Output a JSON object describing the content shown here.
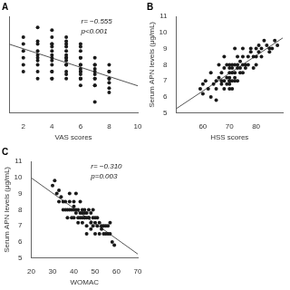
{
  "chart_data": [
    {
      "type": "scatter",
      "title": "A",
      "x_label": "VAS scores",
      "xlim": [
        1,
        10
      ],
      "ylim": [
        4,
        11
      ],
      "xticks": [
        2,
        4,
        6,
        8,
        10
      ],
      "yticks": [],
      "tick_labels": "x",
      "grid": false,
      "annotation": "r= −0.555\np<0.001",
      "series": [
        {
          "type": "scatter",
          "color": "#1a1a1a",
          "x": [
            2,
            2,
            2,
            2,
            2,
            2,
            3,
            3,
            3,
            3,
            3,
            3,
            3,
            3,
            3,
            3,
            4,
            4,
            4,
            4,
            4,
            4,
            4,
            4,
            4,
            4,
            4,
            4,
            4,
            4,
            5,
            5,
            5,
            5,
            5,
            5,
            5,
            5,
            5,
            5,
            5,
            5,
            5,
            5,
            6,
            6,
            6,
            6,
            6,
            6,
            6,
            6,
            6,
            6,
            6,
            6,
            6,
            6,
            6,
            7,
            7,
            7,
            7,
            7,
            7,
            7,
            7,
            7,
            7,
            7,
            8,
            8,
            8,
            8,
            8,
            8,
            8,
            8
          ],
          "values": [
            8.5,
            7.5,
            9.0,
            8.0,
            7.0,
            9.5,
            9.2,
            8.5,
            7.8,
            8.0,
            6.5,
            7.5,
            9.0,
            10.2,
            7.0,
            8.2,
            7.0,
            8.0,
            9.0,
            6.5,
            8.5,
            7.5,
            9.5,
            10.0,
            8.2,
            7.8,
            7.0,
            6.5,
            9.0,
            8.8,
            7.5,
            8.0,
            8.5,
            9.0,
            7.0,
            6.5,
            8.0,
            7.5,
            9.5,
            8.2,
            7.8,
            6.8,
            9.2,
            8.8,
            7.5,
            7.0,
            6.5,
            8.0,
            7.2,
            6.8,
            7.5,
            8.0,
            8.5,
            6.0,
            7.0,
            9.0,
            8.8,
            6.5,
            6.5,
            7.0,
            7.5,
            6.8,
            7.2,
            6.5,
            8.0,
            7.5,
            6.0,
            4.8,
            6.5,
            6.0,
            7.0,
            6.5,
            7.5,
            5.5,
            6.5,
            7.0,
            5.8,
            6.2
          ]
        },
        {
          "type": "line",
          "color": "#555555",
          "x": [
            1,
            10
          ],
          "values": [
            8.9885,
            5.9744
          ]
        }
      ]
    },
    {
      "type": "scatter",
      "title": "B",
      "x_label": "HSS scores",
      "y_label": "Serum APN levels (μg/mL)",
      "xlim": [
        50,
        90
      ],
      "ylim": [
        5,
        11
      ],
      "xticks": [
        60,
        70,
        80
      ],
      "yticks": [
        5,
        6,
        7,
        8,
        9,
        10,
        11
      ],
      "grid": false,
      "series": [
        {
          "type": "scatter",
          "color": "#1a1a1a",
          "x": [
            59,
            60,
            60,
            61,
            62,
            63,
            63,
            64,
            65,
            65,
            65,
            66,
            66,
            67,
            67,
            67,
            68,
            68,
            68,
            68,
            69,
            69,
            69,
            70,
            70,
            70,
            70,
            70,
            70,
            70,
            70,
            71,
            71,
            71,
            71,
            71,
            72,
            72,
            72,
            72,
            72,
            73,
            73,
            73,
            73,
            74,
            74,
            74,
            75,
            75,
            75,
            75,
            76,
            76,
            77,
            77,
            78,
            78,
            79,
            79,
            80,
            80,
            80,
            81,
            81,
            82,
            82,
            83,
            84,
            85,
            85,
            86,
            87,
            88
          ],
          "values": [
            6.5,
            6.8,
            6.2,
            7.0,
            6.5,
            7.5,
            6.0,
            6.8,
            5.8,
            7.0,
            6.5,
            7.2,
            8.0,
            7.5,
            6.8,
            7.0,
            6.5,
            7.8,
            8.5,
            7.0,
            7.2,
            6.8,
            8.0,
            7.0,
            7.5,
            6.5,
            8.0,
            7.2,
            7.8,
            7.0,
            6.8,
            7.5,
            8.0,
            7.0,
            7.8,
            6.5,
            7.5,
            7.0,
            8.0,
            7.2,
            9.0,
            7.8,
            8.5,
            7.0,
            8.0,
            7.5,
            8.2,
            7.8,
            8.0,
            7.5,
            8.5,
            9.0,
            8.0,
            7.8,
            8.5,
            8.0,
            8.8,
            9.0,
            8.5,
            7.8,
            8.0,
            9.0,
            8.5,
            8.8,
            9.2,
            9.0,
            8.5,
            9.5,
            9.2,
            9.0,
            8.8,
            9.0,
            9.5,
            9.2
          ]
        },
        {
          "type": "line",
          "color": "#555555",
          "x": [
            50,
            90
          ],
          "values": [
            5.2733,
            9.6603
          ]
        }
      ]
    },
    {
      "type": "scatter",
      "title": "C",
      "x_label": "WOMAC",
      "y_label": "Serum APN levels (μg/mL)",
      "xlim": [
        20,
        70
      ],
      "ylim": [
        5,
        11
      ],
      "xticks": [
        20,
        30,
        40,
        50,
        60,
        70
      ],
      "yticks": [
        5,
        6,
        7,
        8,
        9,
        10,
        11
      ],
      "grid": false,
      "annotation": "r= −0.310\np=0.003",
      "series": [
        {
          "type": "scatter",
          "color": "#1a1a1a",
          "x": [
            30,
            31,
            32,
            33,
            33,
            34,
            35,
            35,
            36,
            36,
            37,
            37,
            38,
            38,
            38,
            39,
            39,
            40,
            40,
            40,
            40,
            41,
            41,
            41,
            42,
            42,
            42,
            43,
            43,
            43,
            44,
            44,
            44,
            44,
            45,
            45,
            45,
            45,
            46,
            46,
            46,
            46,
            47,
            47,
            47,
            48,
            48,
            48,
            49,
            49,
            49,
            50,
            50,
            50,
            51,
            51,
            52,
            52,
            53,
            53,
            54,
            54,
            55,
            55,
            56,
            56,
            57,
            57,
            58,
            59
          ],
          "values": [
            9.5,
            9.8,
            9.0,
            8.5,
            9.2,
            8.8,
            8.0,
            8.5,
            8.0,
            8.5,
            8.0,
            7.5,
            8.5,
            8.0,
            9.0,
            7.5,
            8.0,
            8.0,
            7.5,
            8.5,
            8.2,
            7.8,
            8.0,
            9.0,
            7.5,
            8.0,
            7.2,
            7.5,
            7.8,
            8.5,
            7.5,
            7.8,
            8.0,
            7.2,
            7.8,
            7.5,
            8.0,
            7.5,
            7.5,
            7.0,
            7.8,
            6.5,
            7.5,
            7.5,
            8.0,
            7.2,
            7.8,
            6.8,
            7.5,
            7.0,
            8.0,
            7.2,
            7.5,
            6.5,
            7.0,
            7.5,
            7.2,
            6.5,
            7.0,
            6.8,
            7.0,
            6.5,
            7.0,
            6.5,
            6.5,
            7.0,
            6.5,
            7.2,
            6.0,
            5.8
          ]
        },
        {
          "type": "line",
          "color": "#555555",
          "x": [
            20,
            70
          ],
          "values": [
            9.973,
            5.2524
          ]
        }
      ]
    }
  ]
}
